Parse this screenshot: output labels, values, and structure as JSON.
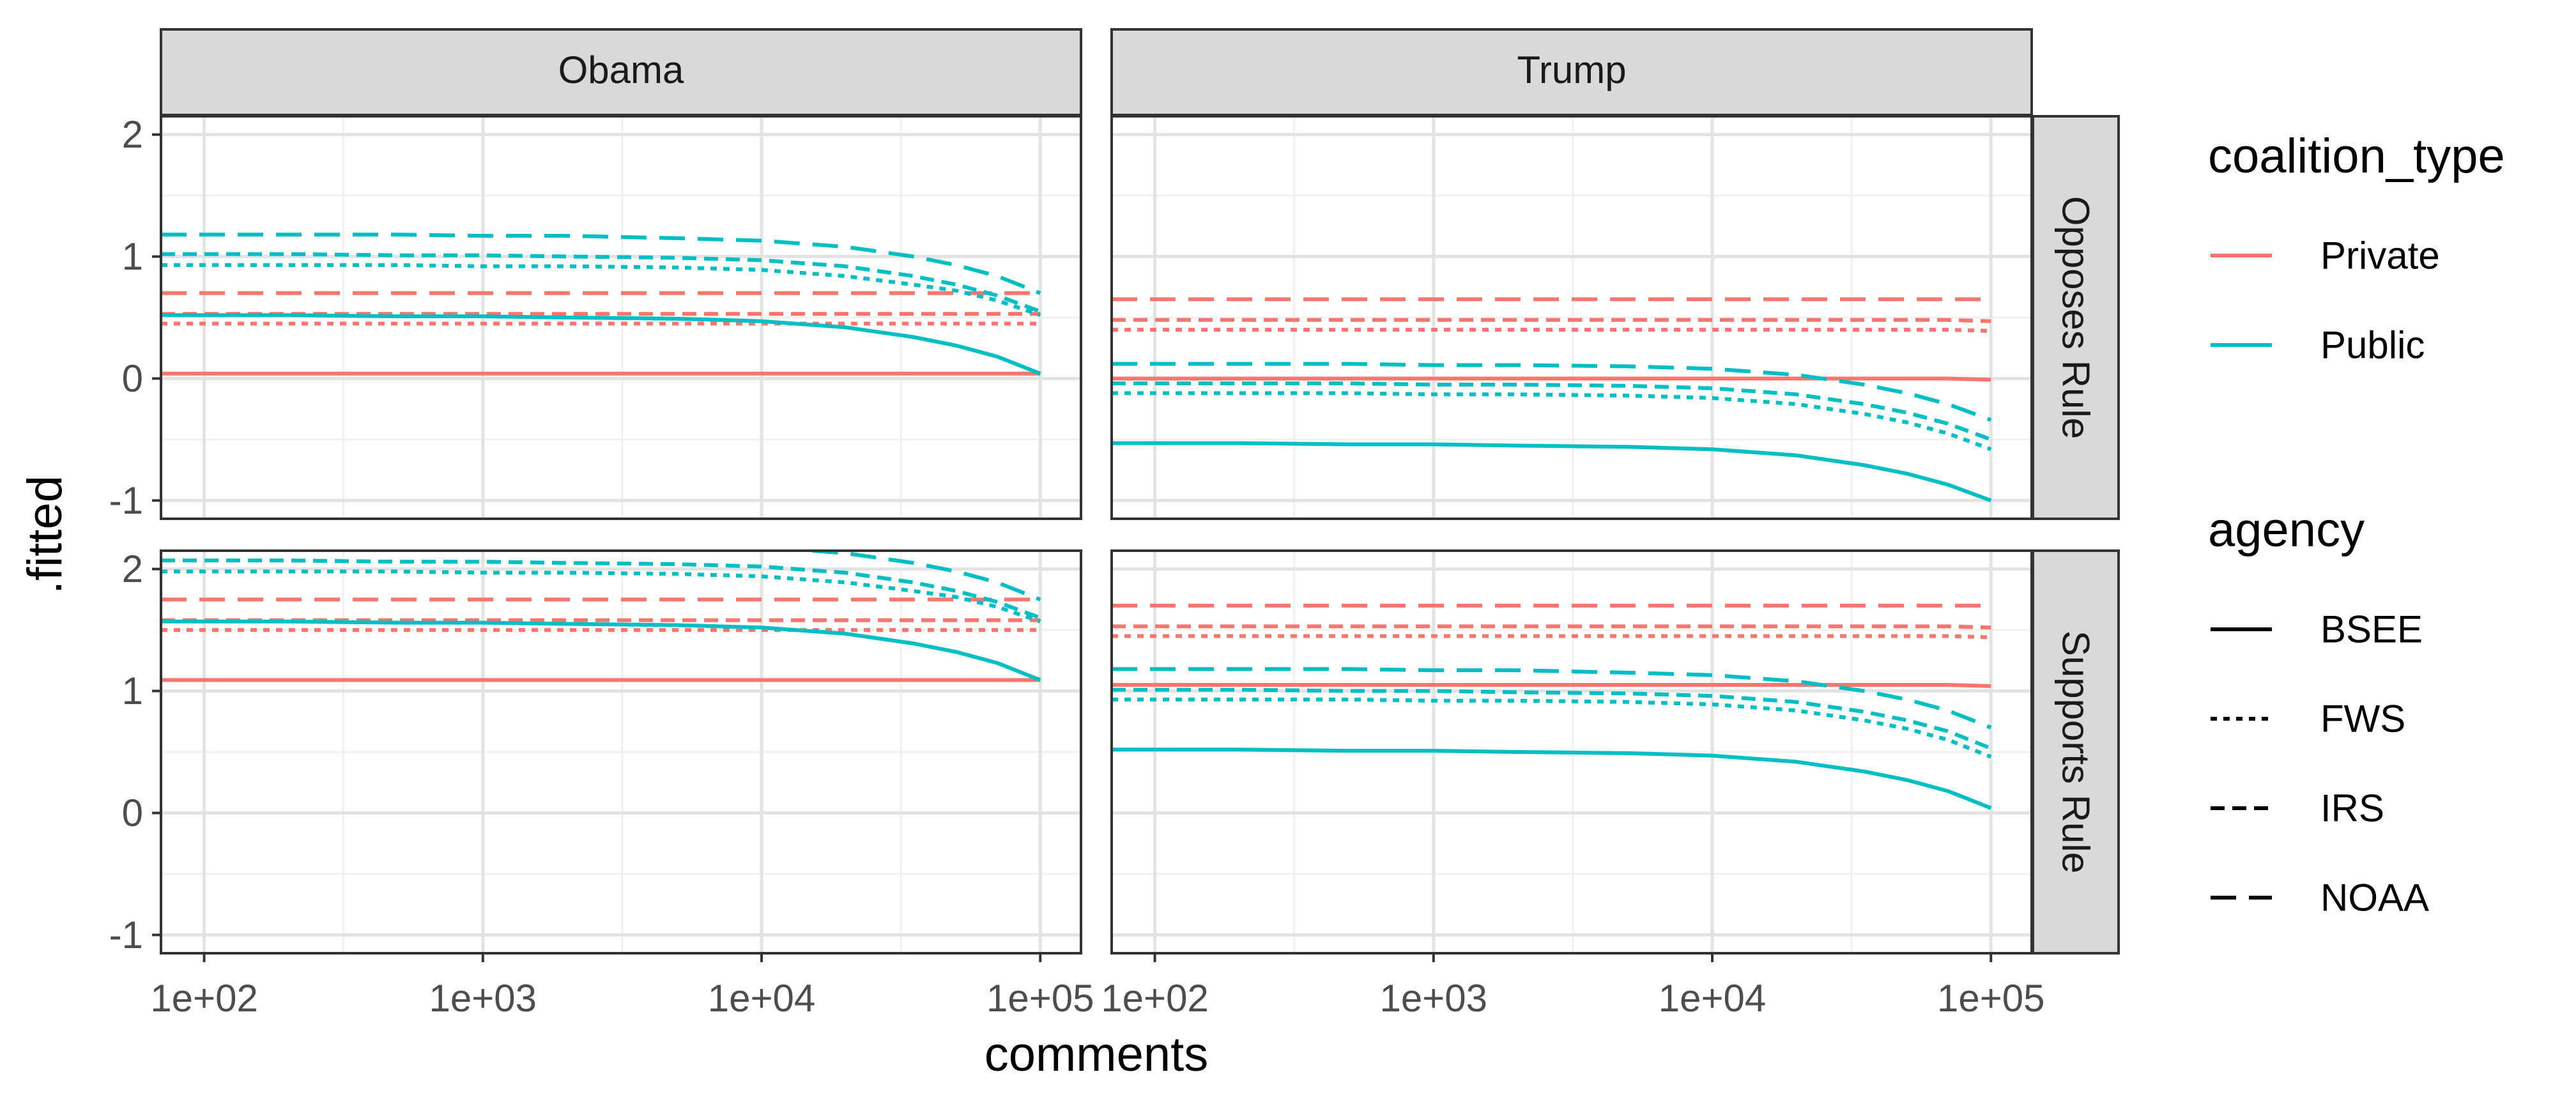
{
  "chart_data": {
    "type": "line",
    "title": "",
    "xlabel": "comments",
    "ylabel": ".fitted",
    "x_scale": "log10",
    "xlim": [
      70,
      140000
    ],
    "ylim": [
      -1.15,
      2.15
    ],
    "x_ticks": [
      100,
      1000,
      10000,
      100000
    ],
    "x_tick_labels": [
      "1e+02",
      "1e+03",
      "1e+04",
      "1e+05"
    ],
    "y_ticks": [
      -1,
      0,
      1,
      2
    ],
    "y_tick_labels": [
      "-1",
      "0",
      "1",
      "2"
    ],
    "grid": true,
    "legend_position": "right",
    "x": [
      70,
      100,
      200,
      500,
      1000,
      2000,
      5000,
      10000,
      20000,
      35000,
      50000,
      70000,
      100000
    ],
    "facets": {
      "columns": [
        "Obama",
        "Trump"
      ],
      "rows": [
        "Opposes Rule",
        "Supports Rule"
      ]
    },
    "legends": [
      {
        "title": "coalition_type",
        "aesthetic": "colour",
        "entries": [
          {
            "label": "Private",
            "color": "#F8766D"
          },
          {
            "label": "Public",
            "color": "#00BFC4"
          }
        ]
      },
      {
        "title": "agency",
        "aesthetic": "linetype",
        "entries": [
          {
            "label": "BSEE",
            "linetype": "solid"
          },
          {
            "label": "FWS",
            "linetype": "dotted"
          },
          {
            "label": "IRS",
            "linetype": "dashed"
          },
          {
            "label": "NOAA",
            "linetype": "longdash"
          }
        ]
      }
    ],
    "panels": [
      {
        "col": "Obama",
        "row": "Opposes Rule",
        "series": [
          {
            "coalition_type": "Private",
            "agency": "BSEE",
            "values": [
              0.04,
              0.04,
              0.04,
              0.04,
              0.04,
              0.04,
              0.04,
              0.04,
              0.04,
              0.04,
              0.04,
              0.04,
              0.04
            ]
          },
          {
            "coalition_type": "Private",
            "agency": "FWS",
            "values": [
              0.45,
              0.45,
              0.45,
              0.45,
              0.45,
              0.45,
              0.45,
              0.45,
              0.45,
              0.45,
              0.45,
              0.45,
              0.45
            ]
          },
          {
            "coalition_type": "Private",
            "agency": "IRS",
            "values": [
              0.53,
              0.53,
              0.53,
              0.53,
              0.53,
              0.53,
              0.53,
              0.53,
              0.53,
              0.53,
              0.53,
              0.53,
              0.53
            ]
          },
          {
            "coalition_type": "Private",
            "agency": "NOAA",
            "values": [
              0.7,
              0.7,
              0.7,
              0.7,
              0.7,
              0.7,
              0.7,
              0.7,
              0.7,
              0.7,
              0.7,
              0.7,
              0.7
            ]
          },
          {
            "coalition_type": "Public",
            "agency": "BSEE",
            "values": [
              0.52,
              0.52,
              0.52,
              0.51,
              0.51,
              0.5,
              0.49,
              0.47,
              0.42,
              0.34,
              0.27,
              0.18,
              0.04
            ]
          },
          {
            "coalition_type": "Public",
            "agency": "FWS",
            "values": [
              0.93,
              0.93,
              0.93,
              0.93,
              0.92,
              0.92,
              0.91,
              0.89,
              0.84,
              0.77,
              0.72,
              0.64,
              0.52
            ]
          },
          {
            "coalition_type": "Public",
            "agency": "IRS",
            "values": [
              1.02,
              1.02,
              1.02,
              1.01,
              1.01,
              1.0,
              0.99,
              0.97,
              0.92,
              0.84,
              0.77,
              0.68,
              0.55
            ]
          },
          {
            "coalition_type": "Public",
            "agency": "NOAA",
            "values": [
              1.18,
              1.18,
              1.18,
              1.18,
              1.17,
              1.17,
              1.15,
              1.13,
              1.08,
              1.0,
              0.93,
              0.84,
              0.7
            ]
          }
        ]
      },
      {
        "col": "Trump",
        "row": "Opposes Rule",
        "series": [
          {
            "coalition_type": "Private",
            "agency": "BSEE",
            "values": [
              0.0,
              0.0,
              0.0,
              0.0,
              0.0,
              0.0,
              0.0,
              0.0,
              0.0,
              0.0,
              0.0,
              0.0,
              -0.01
            ]
          },
          {
            "coalition_type": "Private",
            "agency": "FWS",
            "values": [
              0.4,
              0.4,
              0.4,
              0.4,
              0.4,
              0.4,
              0.4,
              0.4,
              0.4,
              0.4,
              0.4,
              0.4,
              0.39
            ]
          },
          {
            "coalition_type": "Private",
            "agency": "IRS",
            "values": [
              0.48,
              0.48,
              0.48,
              0.48,
              0.48,
              0.48,
              0.48,
              0.48,
              0.48,
              0.48,
              0.48,
              0.48,
              0.47
            ]
          },
          {
            "coalition_type": "Private",
            "agency": "NOAA",
            "values": [
              0.65,
              0.65,
              0.65,
              0.65,
              0.65,
              0.65,
              0.65,
              0.65,
              0.65,
              0.65,
              0.65,
              0.65,
              0.65
            ]
          },
          {
            "coalition_type": "Public",
            "agency": "BSEE",
            "values": [
              -0.53,
              -0.53,
              -0.53,
              -0.54,
              -0.54,
              -0.55,
              -0.56,
              -0.58,
              -0.63,
              -0.71,
              -0.78,
              -0.87,
              -1.0
            ]
          },
          {
            "coalition_type": "Public",
            "agency": "FWS",
            "values": [
              -0.12,
              -0.12,
              -0.12,
              -0.12,
              -0.13,
              -0.13,
              -0.14,
              -0.16,
              -0.21,
              -0.29,
              -0.36,
              -0.45,
              -0.58
            ]
          },
          {
            "coalition_type": "Public",
            "agency": "IRS",
            "values": [
              -0.04,
              -0.04,
              -0.04,
              -0.04,
              -0.05,
              -0.05,
              -0.06,
              -0.08,
              -0.13,
              -0.21,
              -0.28,
              -0.37,
              -0.5
            ]
          },
          {
            "coalition_type": "Public",
            "agency": "NOAA",
            "values": [
              0.12,
              0.12,
              0.12,
              0.12,
              0.11,
              0.11,
              0.1,
              0.08,
              0.03,
              -0.05,
              -0.12,
              -0.21,
              -0.34
            ]
          }
        ]
      },
      {
        "col": "Obama",
        "row": "Supports Rule",
        "series": [
          {
            "coalition_type": "Private",
            "agency": "BSEE",
            "values": [
              1.09,
              1.09,
              1.09,
              1.09,
              1.09,
              1.09,
              1.09,
              1.09,
              1.09,
              1.09,
              1.09,
              1.09,
              1.09
            ]
          },
          {
            "coalition_type": "Private",
            "agency": "FWS",
            "values": [
              1.5,
              1.5,
              1.5,
              1.5,
              1.5,
              1.5,
              1.5,
              1.5,
              1.5,
              1.5,
              1.5,
              1.5,
              1.5
            ]
          },
          {
            "coalition_type": "Private",
            "agency": "IRS",
            "values": [
              1.58,
              1.58,
              1.58,
              1.58,
              1.58,
              1.58,
              1.58,
              1.58,
              1.58,
              1.58,
              1.58,
              1.58,
              1.58
            ]
          },
          {
            "coalition_type": "Private",
            "agency": "NOAA",
            "values": [
              1.75,
              1.75,
              1.75,
              1.75,
              1.75,
              1.75,
              1.75,
              1.75,
              1.75,
              1.75,
              1.75,
              1.75,
              1.75
            ]
          },
          {
            "coalition_type": "Public",
            "agency": "BSEE",
            "values": [
              1.57,
              1.57,
              1.57,
              1.56,
              1.56,
              1.55,
              1.54,
              1.52,
              1.47,
              1.39,
              1.32,
              1.23,
              1.09
            ]
          },
          {
            "coalition_type": "Public",
            "agency": "FWS",
            "values": [
              1.98,
              1.98,
              1.98,
              1.98,
              1.97,
              1.97,
              1.96,
              1.94,
              1.89,
              1.82,
              1.77,
              1.69,
              1.57
            ]
          },
          {
            "coalition_type": "Public",
            "agency": "IRS",
            "values": [
              2.07,
              2.07,
              2.07,
              2.06,
              2.06,
              2.05,
              2.04,
              2.02,
              1.97,
              1.89,
              1.82,
              1.73,
              1.6
            ]
          },
          {
            "coalition_type": "Public",
            "agency": "NOAA",
            "values": [
              2.23,
              2.23,
              2.23,
              2.23,
              2.22,
              2.22,
              2.2,
              2.18,
              2.13,
              2.05,
              1.98,
              1.89,
              1.75
            ]
          }
        ]
      },
      {
        "col": "Trump",
        "row": "Supports Rule",
        "series": [
          {
            "coalition_type": "Private",
            "agency": "BSEE",
            "values": [
              1.05,
              1.05,
              1.05,
              1.05,
              1.05,
              1.05,
              1.05,
              1.05,
              1.05,
              1.05,
              1.05,
              1.05,
              1.04
            ]
          },
          {
            "coalition_type": "Private",
            "agency": "FWS",
            "values": [
              1.45,
              1.45,
              1.45,
              1.45,
              1.45,
              1.45,
              1.45,
              1.45,
              1.45,
              1.45,
              1.45,
              1.45,
              1.44
            ]
          },
          {
            "coalition_type": "Private",
            "agency": "IRS",
            "values": [
              1.53,
              1.53,
              1.53,
              1.53,
              1.53,
              1.53,
              1.53,
              1.53,
              1.53,
              1.53,
              1.53,
              1.53,
              1.52
            ]
          },
          {
            "coalition_type": "Private",
            "agency": "NOAA",
            "values": [
              1.7,
              1.7,
              1.7,
              1.7,
              1.7,
              1.7,
              1.7,
              1.7,
              1.7,
              1.7,
              1.7,
              1.7,
              1.7
            ]
          },
          {
            "coalition_type": "Public",
            "agency": "BSEE",
            "values": [
              0.52,
              0.52,
              0.52,
              0.51,
              0.51,
              0.5,
              0.49,
              0.47,
              0.42,
              0.34,
              0.27,
              0.18,
              0.04
            ]
          },
          {
            "coalition_type": "Public",
            "agency": "FWS",
            "values": [
              0.93,
              0.93,
              0.93,
              0.93,
              0.92,
              0.92,
              0.91,
              0.89,
              0.84,
              0.76,
              0.69,
              0.6,
              0.46
            ]
          },
          {
            "coalition_type": "Public",
            "agency": "IRS",
            "values": [
              1.01,
              1.01,
              1.01,
              1.0,
              1.0,
              0.99,
              0.98,
              0.96,
              0.91,
              0.83,
              0.76,
              0.67,
              0.53
            ]
          },
          {
            "coalition_type": "Public",
            "agency": "NOAA",
            "values": [
              1.18,
              1.18,
              1.18,
              1.18,
              1.17,
              1.17,
              1.15,
              1.13,
              1.08,
              1.0,
              0.93,
              0.84,
              0.7
            ]
          }
        ]
      }
    ]
  }
}
